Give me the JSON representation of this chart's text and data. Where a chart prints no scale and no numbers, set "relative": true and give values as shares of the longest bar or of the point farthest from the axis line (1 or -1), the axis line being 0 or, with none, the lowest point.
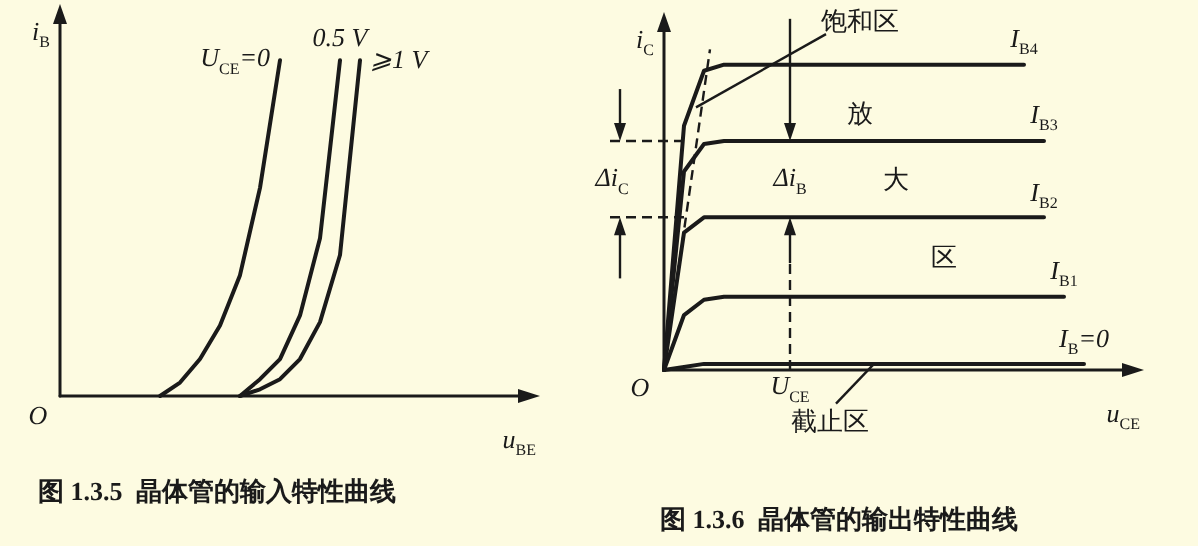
{
  "chart_data": [
    {
      "type": "line",
      "title": "图 1.3.5  晶体管的输入特性曲线",
      "xlabel": "u$_{BE}$",
      "ylabel": "i$_{B}$",
      "relative": true,
      "legend": false,
      "grid": false,
      "categories": [
        null,
        null,
        null,
        null,
        null,
        null,
        null,
        null,
        null,
        null,
        null,
        null,
        null,
        null,
        null,
        null,
        null,
        null,
        null,
        null,
        null,
        null,
        null,
        null
      ],
      "series": [
        {
          "name": "U$_{CE}$=0",
          "color": "#1a1a1a",
          "values": [
            null,
            null,
            null,
            null,
            null,
            0,
            0.04,
            0.11,
            0.21,
            0.36,
            0.62,
            1,
            null,
            null,
            null,
            null,
            null,
            null,
            null,
            null,
            null,
            null,
            null,
            null
          ]
        },
        {
          "name": "0.5 V",
          "color": "#1a1a1a",
          "values": [
            null,
            null,
            null,
            null,
            null,
            null,
            null,
            null,
            null,
            0,
            0.05,
            0.11,
            0.24,
            0.47,
            1,
            null,
            null,
            null,
            null,
            null,
            null,
            null,
            null,
            null
          ]
        },
        {
          "name": "⩾1 V",
          "color": "#1a1a1a",
          "values": [
            null,
            null,
            null,
            null,
            null,
            null,
            null,
            null,
            null,
            0,
            0.02,
            0.05,
            0.11,
            0.22,
            0.42,
            1,
            null,
            null,
            null,
            null,
            null,
            null,
            null,
            null
          ]
        }
      ],
      "annotations": [
        "O"
      ]
    },
    {
      "type": "line",
      "title": "图 1.3.6  晶体管的输出特性曲线",
      "xlabel": "u$_{CE}$",
      "ylabel": "i$_{C}$",
      "relative": true,
      "legend": false,
      "grid": false,
      "categories": [
        null,
        null,
        null,
        null,
        null,
        null,
        null,
        null,
        null,
        null,
        null,
        null,
        null,
        null,
        null,
        null,
        null,
        null,
        null,
        null,
        null,
        null,
        null,
        null
      ],
      "series": [
        {
          "name": "I$_{B4}$",
          "color": "#1a1a1a",
          "values": [
            0,
            0.8,
            0.98,
            1,
            1,
            1,
            1,
            1,
            1,
            1,
            1,
            1,
            1,
            1,
            1,
            1,
            1,
            1,
            1,
            null,
            null,
            null,
            null,
            null
          ]
        },
        {
          "name": "I$_{B3}$",
          "color": "#1a1a1a",
          "values": [
            0,
            0.65,
            0.74,
            0.75,
            0.75,
            0.75,
            0.75,
            0.75,
            0.75,
            0.75,
            0.75,
            0.75,
            0.75,
            0.75,
            0.75,
            0.75,
            0.75,
            0.75,
            0.75,
            0.75,
            null,
            null,
            null,
            null
          ]
        },
        {
          "name": "I$_{B2}$",
          "color": "#1a1a1a",
          "values": [
            0,
            0.45,
            0.5,
            0.5,
            0.5,
            0.5,
            0.5,
            0.5,
            0.5,
            0.5,
            0.5,
            0.5,
            0.5,
            0.5,
            0.5,
            0.5,
            0.5,
            0.5,
            0.5,
            0.5,
            null,
            null,
            null,
            null
          ]
        },
        {
          "name": "I$_{B1}$",
          "color": "#1a1a1a",
          "values": [
            0,
            0.18,
            0.23,
            0.24,
            0.24,
            0.24,
            0.24,
            0.24,
            0.24,
            0.24,
            0.24,
            0.24,
            0.24,
            0.24,
            0.24,
            0.24,
            0.24,
            0.24,
            0.24,
            0.24,
            0.24,
            null,
            null,
            null
          ]
        },
        {
          "name": "I$_{B}$=0",
          "color": "#1a1a1a",
          "values": [
            0,
            0.01,
            0.02,
            0.02,
            0.02,
            0.02,
            0.02,
            0.02,
            0.02,
            0.02,
            0.02,
            0.02,
            0.02,
            0.02,
            0.02,
            0.02,
            0.02,
            0.02,
            0.02,
            0.02,
            0.02,
            0.02,
            null,
            null
          ]
        }
      ],
      "annotations": [
        "饱和区",
        "放",
        "大",
        "区",
        "截止区",
        "Δi$_{C}$",
        "Δi$_{B}$",
        "U$_{CE}$",
        "O"
      ]
    }
  ]
}
